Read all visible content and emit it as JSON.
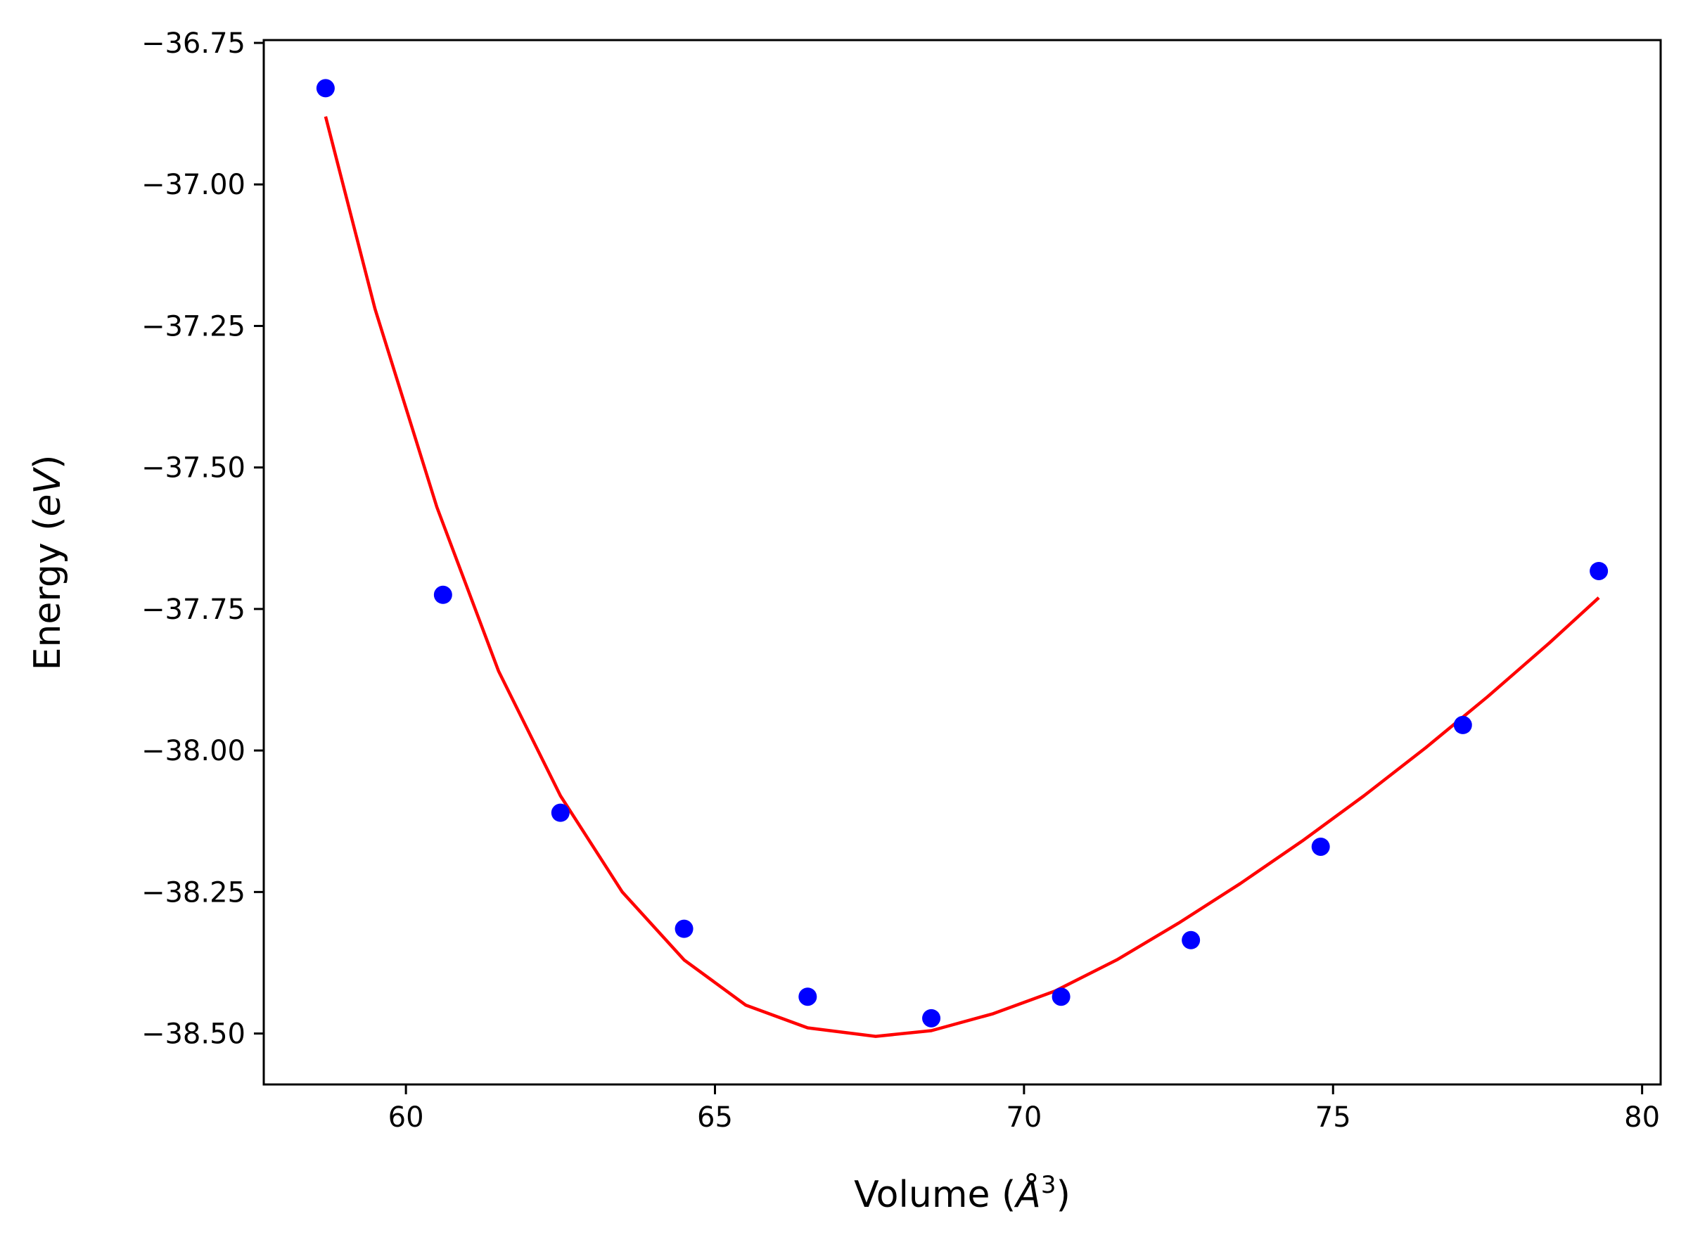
{
  "chart_data": {
    "type": "scatter",
    "xlabel_prefix": "Volume (",
    "xlabel_unit": "Å",
    "xlabel_exp": "3",
    "xlabel_suffix": ")",
    "ylabel_prefix": "Energy (",
    "ylabel_unit": "eV",
    "ylabel_suffix": ")",
    "xlim": [
      57.7,
      80.3
    ],
    "ylim": [
      -38.59,
      -36.745
    ],
    "xticks": [
      60,
      65,
      70,
      75,
      80
    ],
    "xtick_labels": [
      "60",
      "65",
      "70",
      "75",
      "80"
    ],
    "yticks": [
      -36.75,
      -37.0,
      -37.25,
      -37.5,
      -37.75,
      -38.0,
      -38.25,
      -38.5
    ],
    "ytick_labels": [
      "−36.75",
      "−37.00",
      "−37.25",
      "−37.50",
      "−37.75",
      "−38.00",
      "−38.25",
      "−38.50"
    ],
    "grid": false,
    "series": [
      {
        "kind": "points",
        "color": "#0000ff",
        "x": [
          58.7,
          60.6,
          62.5,
          64.5,
          66.5,
          68.5,
          70.6,
          72.7,
          74.8,
          77.1,
          79.3
        ],
        "y": [
          -36.83,
          -37.725,
          -38.11,
          -38.315,
          -38.435,
          -38.473,
          -38.435,
          -38.335,
          -38.17,
          -37.955,
          -37.683
        ]
      },
      {
        "kind": "fit-curve",
        "color": "#ff0000",
        "x": [
          58.7,
          59.5,
          60.5,
          61.5,
          62.5,
          63.5,
          64.5,
          65.5,
          66.5,
          67.6,
          68.5,
          69.5,
          70.5,
          71.5,
          72.5,
          73.5,
          74.5,
          75.5,
          76.5,
          77.5,
          78.5,
          79.3
        ],
        "y": [
          -36.88,
          -37.22,
          -37.57,
          -37.86,
          -38.08,
          -38.25,
          -38.37,
          -38.45,
          -38.49,
          -38.505,
          -38.495,
          -38.465,
          -38.425,
          -38.37,
          -38.305,
          -38.235,
          -38.16,
          -38.08,
          -37.995,
          -37.905,
          -37.81,
          -37.73
        ]
      }
    ]
  }
}
